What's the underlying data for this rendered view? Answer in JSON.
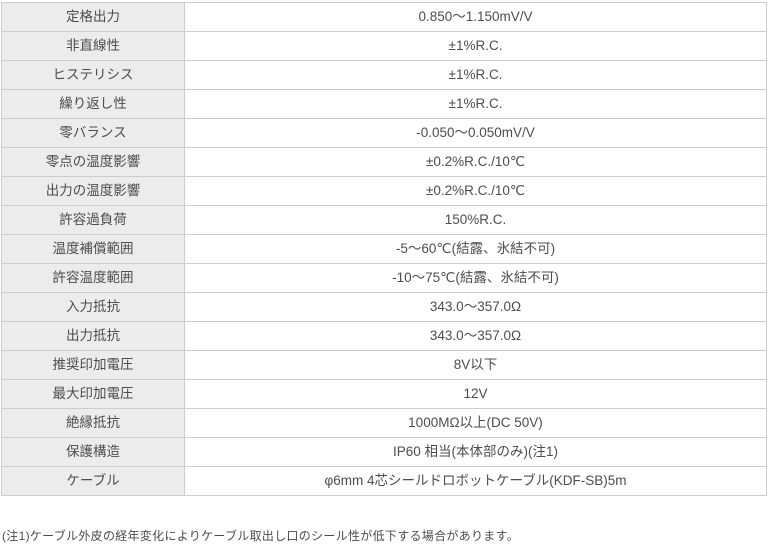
{
  "colors": {
    "label_cell_background": "#ececec",
    "value_cell_background": "#ffffff",
    "border": "#cccccc",
    "text": "#4d4d4d"
  },
  "table": {
    "rows": [
      {
        "label": "定格出力",
        "value": "0.850〜1.150mV/V"
      },
      {
        "label": "非直線性",
        "value": "±1%R.C."
      },
      {
        "label": "ヒステリシス",
        "value": "±1%R.C."
      },
      {
        "label": "繰り返し性",
        "value": "±1%R.C."
      },
      {
        "label": "零バランス",
        "value": "-0.050〜0.050mV/V"
      },
      {
        "label": "零点の温度影響",
        "value": "±0.2%R.C./10℃"
      },
      {
        "label": "出力の温度影響",
        "value": "±0.2%R.C./10℃"
      },
      {
        "label": "許容過負荷",
        "value": "150%R.C."
      },
      {
        "label": "温度補償範囲",
        "value": "-5〜60℃(結露、氷結不可)"
      },
      {
        "label": "許容温度範囲",
        "value": "-10〜75℃(結露、氷結不可)"
      },
      {
        "label": "入力抵抗",
        "value": "343.0〜357.0Ω"
      },
      {
        "label": "出力抵抗",
        "value": "343.0〜357.0Ω"
      },
      {
        "label": "推奨印加電圧",
        "value": "8V以下"
      },
      {
        "label": "最大印加電圧",
        "value": "12V"
      },
      {
        "label": "絶縁抵抗",
        "value": "1000MΩ以上(DC 50V)"
      },
      {
        "label": "保護構造",
        "value": "IP60 相当(本体部のみ)(注1)"
      },
      {
        "label": "ケーブル",
        "value": "φ6mm 4芯シールドロボットケーブル(KDF-SB)5m"
      }
    ]
  },
  "footnote": "(注1)ケーブル外皮の経年変化によりケーブル取出し口のシール性が低下する場合があります。"
}
